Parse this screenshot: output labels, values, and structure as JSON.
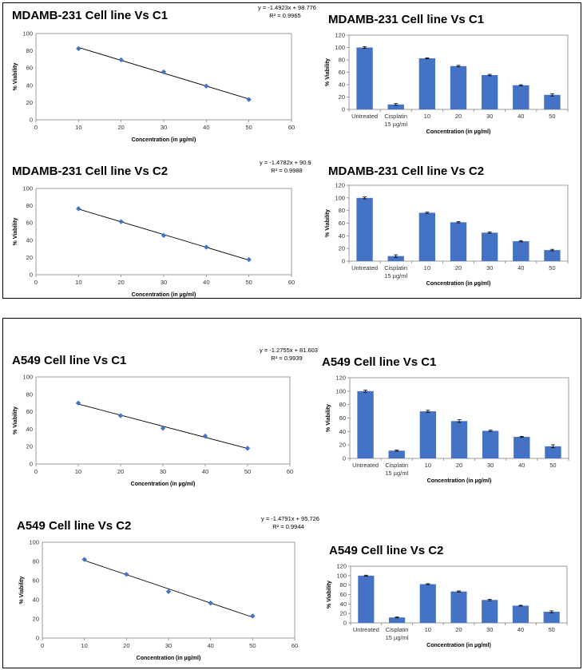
{
  "colors": {
    "bar": "#4472C4",
    "marker": "#4472C4",
    "line": "#000000",
    "axis": "#868686",
    "panel_border": "#000000"
  },
  "panels": [
    {
      "name": "panel-mdamb231"
    },
    {
      "name": "panel-a549"
    }
  ],
  "chart_data": [
    {
      "id": "mdamb-c1-line",
      "type": "scatter",
      "title": "MDAMB-231 Cell line Vs C1",
      "x": [
        10,
        20,
        30,
        40,
        50
      ],
      "y": [
        82.5,
        69.5,
        55.5,
        39,
        23.5
      ],
      "xlim": [
        0,
        60
      ],
      "ylim": [
        0,
        100
      ],
      "xticks": [
        0,
        10,
        20,
        30,
        40,
        50,
        60
      ],
      "yticks": [
        0,
        20,
        40,
        60,
        80,
        100
      ],
      "xlabel": "Concentration (in µg/ml)",
      "ylabel": "% Viability",
      "trend": {
        "slope": -1.4923,
        "intercept": 98.776
      },
      "equation": "y = -1.4923x + 98.776",
      "r2": "R² = 0.9965"
    },
    {
      "id": "mdamb-c1-bar",
      "type": "bar",
      "title": "MDAMB-231 Cell line Vs C1",
      "categories": [
        "Untreated",
        "Cisplatin 15 µg/ml",
        "10",
        "20",
        "30",
        "40",
        "50"
      ],
      "values": [
        100,
        8,
        82.5,
        70,
        55.5,
        39,
        23.5
      ],
      "errors": [
        1.5,
        1.5,
        0.8,
        1.2,
        1.2,
        0.8,
        1.8
      ],
      "ylim": [
        0,
        120
      ],
      "yticks": [
        0,
        20,
        40,
        60,
        80,
        100,
        120
      ],
      "xlabel": "Concentration (in µg/ml)",
      "ylabel": "% Viability"
    },
    {
      "id": "mdamb-c2-line",
      "type": "scatter",
      "title": "MDAMB-231 Cell line Vs C2",
      "x": [
        10,
        20,
        30,
        40,
        50
      ],
      "y": [
        76.5,
        61.5,
        45.5,
        32,
        17.5
      ],
      "xlim": [
        0,
        60
      ],
      "ylim": [
        0,
        100
      ],
      "xticks": [
        0,
        10,
        20,
        30,
        40,
        50,
        60
      ],
      "yticks": [
        0,
        20,
        40,
        60,
        80,
        100
      ],
      "xlabel": "Concentration (in µg/ml)",
      "ylabel": "% Viability",
      "trend": {
        "slope": -1.4782,
        "intercept": 90.9
      },
      "equation": "y = -1.4782x + 90.9",
      "r2": "R² = 0.9988"
    },
    {
      "id": "mdamb-c2-bar",
      "type": "bar",
      "title": "MDAMB-231 Cell line Vs C2",
      "categories": [
        "Untreated",
        "Cisplatin 15 µg/ml",
        "10",
        "20",
        "30",
        "40",
        "50"
      ],
      "values": [
        100,
        8,
        76.5,
        61.5,
        45,
        31.5,
        17.5
      ],
      "errors": [
        1.5,
        2,
        1,
        1,
        1,
        1,
        1.2
      ],
      "ylim": [
        0,
        120
      ],
      "yticks": [
        0,
        20,
        40,
        60,
        80,
        100,
        120
      ],
      "xlabel": "Concentration (in µg/ml)",
      "ylabel": "% Viability"
    },
    {
      "id": "a549-c1-line",
      "type": "scatter",
      "title": "A549 Cell line Vs C1",
      "x": [
        10,
        20,
        30,
        40,
        50
      ],
      "y": [
        70,
        55.5,
        41,
        32,
        18
      ],
      "xlim": [
        0,
        60
      ],
      "ylim": [
        0,
        100
      ],
      "xticks": [
        0,
        10,
        20,
        30,
        40,
        50,
        60
      ],
      "yticks": [
        0,
        20,
        40,
        60,
        80,
        100
      ],
      "xlabel": "Concentration (in µg/ml)",
      "ylabel": "% Viability",
      "trend": {
        "slope": -1.2755,
        "intercept": 81.603
      },
      "equation": "y = -1.2755x + 81.603",
      "r2": "R² = 0.9939"
    },
    {
      "id": "a549-c1-bar",
      "type": "bar",
      "title": "A549 Cell line Vs C1",
      "categories": [
        "Untreated",
        "Cisplatin 15 µg/ml",
        "10",
        "20",
        "30",
        "40",
        "50"
      ],
      "values": [
        100,
        11.5,
        70,
        55.5,
        41,
        32,
        18
      ],
      "errors": [
        1.5,
        0.8,
        1.5,
        2,
        1,
        0.8,
        2.2
      ],
      "ylim": [
        0,
        120
      ],
      "yticks": [
        0,
        20,
        40,
        60,
        80,
        100,
        120
      ],
      "xlabel": "Concentration (in µg/ml)",
      "ylabel": "% Viability"
    },
    {
      "id": "a549-c2-line",
      "type": "scatter",
      "title": "A549 Cell line Vs C2",
      "x": [
        10,
        20,
        30,
        40,
        50
      ],
      "y": [
        82,
        66.5,
        48.5,
        36.5,
        23
      ],
      "xlim": [
        0,
        60
      ],
      "ylim": [
        0,
        100
      ],
      "xticks": [
        0,
        10,
        20,
        30,
        40,
        50,
        60
      ],
      "yticks": [
        0,
        20,
        40,
        60,
        80,
        100
      ],
      "xlabel": "Concentration (in µg/ml)",
      "ylabel": "% Viability",
      "trend": {
        "slope": -1.4791,
        "intercept": 95.726
      },
      "equation": "y = -1.4791x + 95.726",
      "r2": "R² = 0.9944"
    },
    {
      "id": "a549-c2-bar",
      "type": "bar",
      "title": "A549 Cell line Vs C2",
      "categories": [
        "Untreated",
        "Cisplatin 15 µg/ml",
        "10",
        "20",
        "30",
        "40",
        "50"
      ],
      "values": [
        100,
        11.5,
        82,
        66.5,
        48.5,
        36.5,
        23.5
      ],
      "errors": [
        1,
        1,
        1,
        1.2,
        1.5,
        0.8,
        2
      ],
      "ylim": [
        0,
        120
      ],
      "yticks": [
        0,
        20,
        40,
        60,
        80,
        100,
        120
      ],
      "xlabel": "Concentration (in µg/ml)",
      "ylabel": "% Viability"
    }
  ]
}
